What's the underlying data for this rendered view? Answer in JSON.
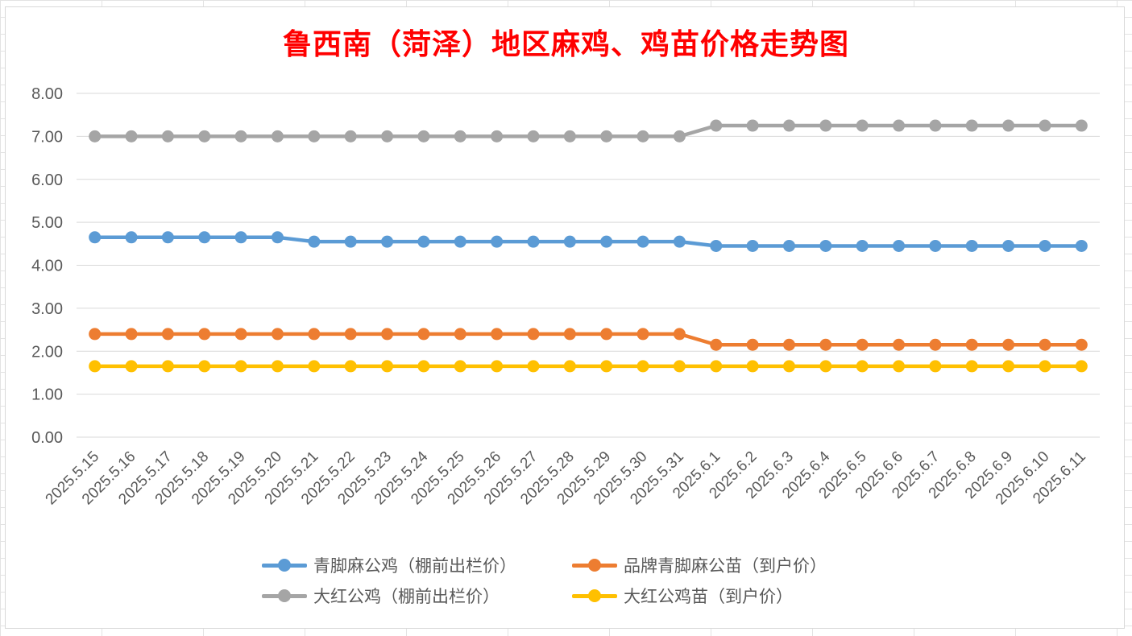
{
  "chart_data": {
    "type": "line",
    "title": "鲁西南（菏泽）地区麻鸡、鸡苗价格走势图",
    "xlabel": "",
    "ylabel": "",
    "ylim": [
      0,
      8
    ],
    "yticks": [
      "0.00",
      "1.00",
      "2.00",
      "3.00",
      "4.00",
      "5.00",
      "6.00",
      "7.00",
      "8.00"
    ],
    "grid": true,
    "legend_position": "bottom",
    "categories": [
      "2025.5.15",
      "2025.5.16",
      "2025.5.17",
      "2025.5.18",
      "2025.5.19",
      "2025.5.20",
      "2025.5.21",
      "2025.5.22",
      "2025.5.23",
      "2025.5.24",
      "2025.5.25",
      "2025.5.26",
      "2025.5.27",
      "2025.5.28",
      "2025.5.29",
      "2025.5.30",
      "2025.5.31",
      "2025.6.1",
      "2025.6.2",
      "2025.6.3",
      "2025.6.4",
      "2025.6.5",
      "2025.6.6",
      "2025.6.7",
      "2025.6.8",
      "2025.6.9",
      "2025.6.10",
      "2025.6.11"
    ],
    "series": [
      {
        "name": "青脚麻公鸡（棚前出栏价）",
        "color": "#5b9bd5",
        "values": [
          4.65,
          4.65,
          4.65,
          4.65,
          4.65,
          4.65,
          4.55,
          4.55,
          4.55,
          4.55,
          4.55,
          4.55,
          4.55,
          4.55,
          4.55,
          4.55,
          4.55,
          4.45,
          4.45,
          4.45,
          4.45,
          4.45,
          4.45,
          4.45,
          4.45,
          4.45,
          4.45,
          4.45
        ]
      },
      {
        "name": "品牌青脚麻公苗（到户价）",
        "color": "#ed7d31",
        "values": [
          2.4,
          2.4,
          2.4,
          2.4,
          2.4,
          2.4,
          2.4,
          2.4,
          2.4,
          2.4,
          2.4,
          2.4,
          2.4,
          2.4,
          2.4,
          2.4,
          2.4,
          2.15,
          2.15,
          2.15,
          2.15,
          2.15,
          2.15,
          2.15,
          2.15,
          2.15,
          2.15,
          2.15
        ]
      },
      {
        "name": "大红公鸡（棚前出栏价）",
        "color": "#a5a5a5",
        "values": [
          7.0,
          7.0,
          7.0,
          7.0,
          7.0,
          7.0,
          7.0,
          7.0,
          7.0,
          7.0,
          7.0,
          7.0,
          7.0,
          7.0,
          7.0,
          7.0,
          7.0,
          7.25,
          7.25,
          7.25,
          7.25,
          7.25,
          7.25,
          7.25,
          7.25,
          7.25,
          7.25,
          7.25
        ]
      },
      {
        "name": "大红公鸡苗（到户价）",
        "color": "#ffc000",
        "values": [
          1.65,
          1.65,
          1.65,
          1.65,
          1.65,
          1.65,
          1.65,
          1.65,
          1.65,
          1.65,
          1.65,
          1.65,
          1.65,
          1.65,
          1.65,
          1.65,
          1.65,
          1.65,
          1.65,
          1.65,
          1.65,
          1.65,
          1.65,
          1.65,
          1.65,
          1.65,
          1.65,
          1.65
        ]
      }
    ]
  }
}
